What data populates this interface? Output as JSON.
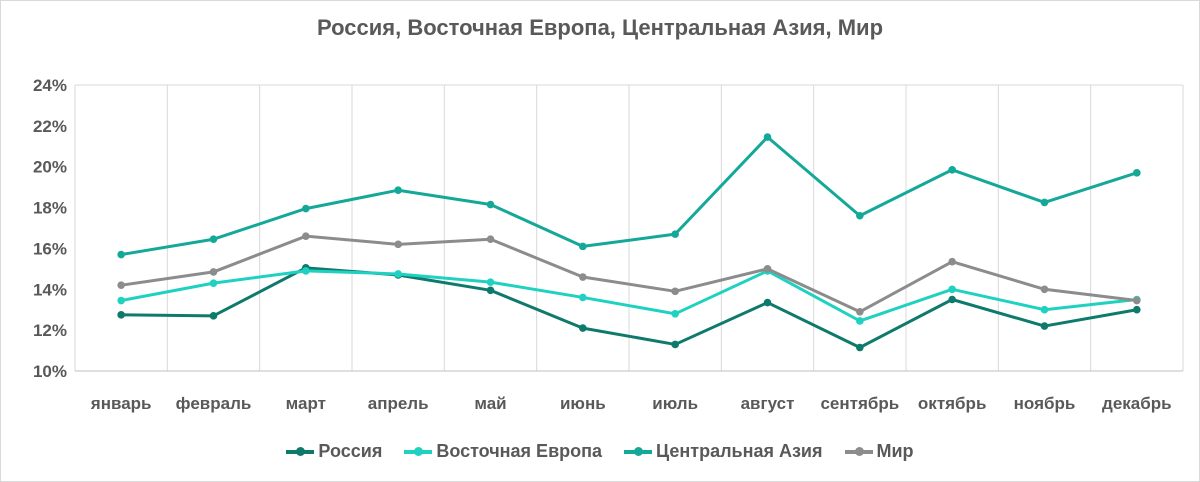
{
  "chart_data": {
    "type": "line",
    "title": "Россия, Восточная Европа,  Центральная Азия,  Мир",
    "categories": [
      "январь",
      "февраль",
      "март",
      "апрель",
      "май",
      "июнь",
      "июль",
      "август",
      "сентябрь",
      "октябрь",
      "ноябрь",
      "декабрь"
    ],
    "ylim": [
      10,
      24
    ],
    "yticks": [
      "10%",
      "12%",
      "14%",
      "16%",
      "18%",
      "20%",
      "22%",
      "24%"
    ],
    "ytick_values": [
      10,
      12,
      14,
      16,
      18,
      20,
      22,
      24
    ],
    "grid": "vertical",
    "legend_position": "bottom",
    "series": [
      {
        "name": "Россия",
        "color": "#0e7a6b",
        "values": [
          12.75,
          12.7,
          15.05,
          14.7,
          13.95,
          12.1,
          11.3,
          13.35,
          11.15,
          13.5,
          12.2,
          13.0
        ]
      },
      {
        "name": "Восточная Европа",
        "color": "#1fd1c1",
        "values": [
          13.45,
          14.3,
          14.9,
          14.75,
          14.35,
          13.6,
          12.8,
          14.9,
          12.45,
          14.0,
          13.0,
          13.5
        ]
      },
      {
        "name": "Центральная Азия",
        "color": "#14a899",
        "values": [
          15.7,
          16.45,
          17.95,
          18.85,
          18.15,
          16.1,
          16.7,
          21.45,
          17.6,
          19.85,
          18.25,
          19.7
        ]
      },
      {
        "name": "Мир",
        "color": "#8c8c8c",
        "values": [
          14.2,
          14.85,
          16.6,
          16.2,
          16.45,
          14.6,
          13.9,
          15.0,
          12.9,
          15.35,
          14.0,
          13.45
        ]
      }
    ]
  }
}
